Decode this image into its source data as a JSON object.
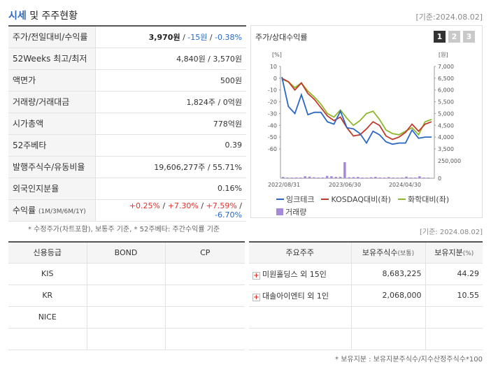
{
  "header": {
    "title_highlight": "시세",
    "title_rest": " 및 주주현황",
    "date": "[기준:2024.08.02]"
  },
  "quote": {
    "rows": [
      {
        "key": "주가/전일대비/수익률",
        "price": "3,970원",
        "sep1": " / ",
        "change": "-15원",
        "sep2": " / ",
        "rate": "-0.38%"
      },
      {
        "key": "52Weeks 최고/최저",
        "value": "4,840원 / 3,570원"
      },
      {
        "key": "액면가",
        "value": "500원"
      },
      {
        "key": "거래량/거래대금",
        "value": "1,824주 / 0억원"
      },
      {
        "key": "시가총액",
        "value": "778억원"
      },
      {
        "key": "52주베타",
        "value": "0.39"
      },
      {
        "key": "발행주식수/유동비율",
        "value": "19,606,277주 / 55.71%"
      },
      {
        "key": "외국인지분율",
        "value": "0.16%"
      },
      {
        "key": "수익률",
        "key_small": "(1M/3M/6M/1Y)",
        "r1": "+0.25%",
        "r2": "+7.30%",
        "r3": "+7.59%",
        "r4": "-6.70%",
        "slash": "/"
      }
    ]
  },
  "notes": {
    "note1": "* 수정주가(차트포함), 보통주 기준, * 52주베타: 주간수익률 기준",
    "date2": "[기준: 2024.08.02]",
    "note2": "* 보유지분 : 보유지분주식수/지수산정주식수*100"
  },
  "chart_panel": {
    "title": "주가/상대수익률",
    "pages": [
      "1",
      "2",
      "3"
    ],
    "legend": {
      "s1": "잉크테크",
      "s2": "KOSDAQ대비(좌)",
      "s3": "화학대비(좌)",
      "s4": "거래량"
    }
  },
  "chart_data": {
    "type": "line",
    "left_unit": "[%]",
    "right_unit": "[원]",
    "left_ticks": [
      10,
      0,
      -10,
      -20,
      -30,
      -40,
      -50,
      -60
    ],
    "right_ticks": [
      "7,000",
      "6,500",
      "6,000",
      "5,500",
      "5,000",
      "4,500",
      "4,000",
      "3,500"
    ],
    "volume_ticks": [
      "250,000",
      "0"
    ],
    "x_ticks": [
      "2022/08/31",
      "2023/06/30",
      "2024/04/30"
    ],
    "ylim_left": [
      -60,
      10
    ],
    "ylim_right": [
      3500,
      7000
    ],
    "colors": {
      "price": "#2a67c5",
      "kosdaq": "#c0392b",
      "chem": "#8db82a",
      "volume": "#a48ad8"
    },
    "price_relative_pct": [
      1,
      -24,
      -30,
      -14,
      -31,
      -29,
      -29,
      -37,
      -39,
      -28,
      -42,
      -43,
      -47,
      -55,
      -45,
      -48,
      -54,
      -56,
      -55,
      -55,
      -44,
      -51,
      -50,
      -50
    ],
    "kosdaq_relative_pct": [
      0,
      -3,
      -10,
      -4,
      -13,
      -18,
      -25,
      -32,
      -36,
      -33,
      -42,
      -49,
      -48,
      -43,
      -37,
      -40,
      -49,
      -52,
      -50,
      -46,
      -39,
      -45,
      -39,
      -37
    ],
    "chem_relative_pct": [
      -1,
      -3,
      -8,
      -4,
      -11,
      -16,
      -22,
      -30,
      -33,
      -27,
      -34,
      -40,
      -36,
      -30,
      -28,
      -35,
      -44,
      -47,
      -48,
      -45,
      -42,
      -48,
      -37,
      -35
    ],
    "volume": [
      20000,
      8000,
      10000,
      12000,
      9000,
      30000,
      25000,
      15000,
      10000,
      12000,
      35000,
      30000,
      20000,
      22000,
      240000,
      15000,
      18000,
      20000,
      10000,
      8000,
      15000,
      22000,
      12000,
      10000,
      18000,
      8000,
      6000,
      12000,
      25000,
      10000,
      8000,
      30000,
      6000,
      5000
    ]
  },
  "credit": {
    "headers": [
      "신용등급",
      "BOND",
      "CP"
    ],
    "rows": [
      {
        "agency": "KIS",
        "bond": "",
        "cp": ""
      },
      {
        "agency": "KR",
        "bond": "",
        "cp": ""
      },
      {
        "agency": "NICE",
        "bond": "",
        "cp": ""
      },
      {
        "agency": "",
        "bond": "",
        "cp": ""
      }
    ]
  },
  "holders": {
    "h_name": "주요주주",
    "h_shares": "보유주식수",
    "h_shares_small": "(보통)",
    "h_pct": "보유지분",
    "h_pct_small": "(%)",
    "rows": [
      {
        "name": "미원홀딩스 외 15인",
        "shares": "8,683,225",
        "pct": "44.29"
      },
      {
        "name": "대솔아이엔티 외 1인",
        "shares": "2,068,000",
        "pct": "10.55"
      }
    ]
  }
}
